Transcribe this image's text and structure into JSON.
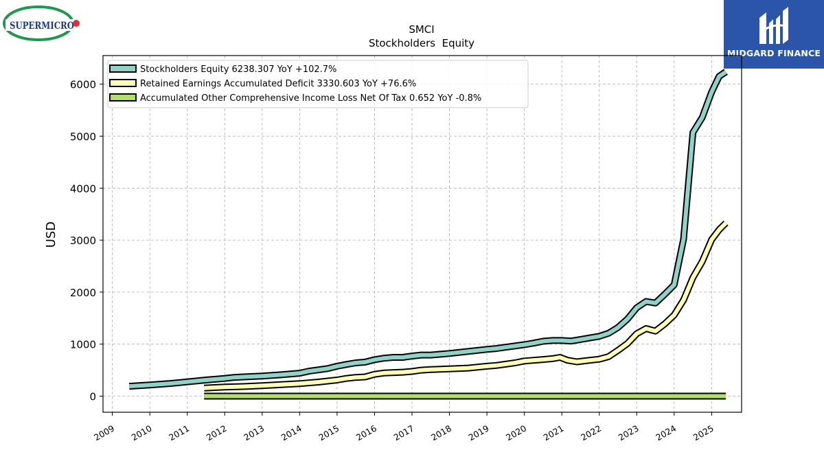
{
  "brand_left": {
    "name": "SUPERMICRO"
  },
  "brand_right": {
    "name": "MIDGARD FINANCE"
  },
  "chart_data": {
    "type": "line",
    "title": "SMCI",
    "subtitle": "Stockholders  Equity",
    "xlabel": "",
    "ylabel": "USD",
    "ylim": [
      -310,
      6550
    ],
    "xlim": [
      2008.75,
      2025.8
    ],
    "yticks": [
      0,
      1000,
      2000,
      3000,
      4000,
      5000,
      6000
    ],
    "xticks": [
      2009,
      2010,
      2011,
      2012,
      2013,
      2014,
      2015,
      2016,
      2017,
      2018,
      2019,
      2020,
      2021,
      2022,
      2023,
      2024,
      2025
    ],
    "grid": true,
    "legend_position": "top-left",
    "series": [
      {
        "name": "Stockholders Equity  6238.307 YoY +102.7%",
        "color": "#8dd3c7",
        "points": [
          [
            2009.45,
            190
          ],
          [
            2010.0,
            215
          ],
          [
            2010.5,
            240
          ],
          [
            2011.0,
            275
          ],
          [
            2011.5,
            310
          ],
          [
            2012.0,
            340
          ],
          [
            2012.25,
            360
          ],
          [
            2012.5,
            370
          ],
          [
            2013.0,
            385
          ],
          [
            2013.5,
            410
          ],
          [
            2014.0,
            440
          ],
          [
            2014.25,
            480
          ],
          [
            2014.75,
            530
          ],
          [
            2015.0,
            575
          ],
          [
            2015.25,
            610
          ],
          [
            2015.5,
            640
          ],
          [
            2015.75,
            655
          ],
          [
            2016.0,
            700
          ],
          [
            2016.25,
            730
          ],
          [
            2016.5,
            745
          ],
          [
            2016.75,
            745
          ],
          [
            2017.0,
            770
          ],
          [
            2017.25,
            790
          ],
          [
            2017.5,
            790
          ],
          [
            2018.0,
            820
          ],
          [
            2018.5,
            860
          ],
          [
            2018.75,
            880
          ],
          [
            2019.0,
            900
          ],
          [
            2019.25,
            915
          ],
          [
            2019.5,
            940
          ],
          [
            2020.0,
            990
          ],
          [
            2020.25,
            1020
          ],
          [
            2020.5,
            1055
          ],
          [
            2020.75,
            1070
          ],
          [
            2021.0,
            1070
          ],
          [
            2021.25,
            1060
          ],
          [
            2021.5,
            1090
          ],
          [
            2021.75,
            1120
          ],
          [
            2022.0,
            1150
          ],
          [
            2022.25,
            1210
          ],
          [
            2022.5,
            1320
          ],
          [
            2022.75,
            1480
          ],
          [
            2023.0,
            1700
          ],
          [
            2023.25,
            1820
          ],
          [
            2023.5,
            1790
          ],
          [
            2023.75,
            1960
          ],
          [
            2024.0,
            2140
          ],
          [
            2024.25,
            3020
          ],
          [
            2024.5,
            5070
          ],
          [
            2024.75,
            5360
          ],
          [
            2025.0,
            5850
          ],
          [
            2025.2,
            6150
          ],
          [
            2025.38,
            6238
          ]
        ]
      },
      {
        "name": "Retained Earnings Accumulated Deficit  3330.603 YoY +76.6%",
        "color": "#ffffb3",
        "points": [
          [
            2011.45,
            155
          ],
          [
            2012.0,
            175
          ],
          [
            2012.5,
            185
          ],
          [
            2013.0,
            200
          ],
          [
            2013.5,
            220
          ],
          [
            2014.0,
            240
          ],
          [
            2014.5,
            270
          ],
          [
            2015.0,
            310
          ],
          [
            2015.25,
            340
          ],
          [
            2015.5,
            360
          ],
          [
            2015.75,
            370
          ],
          [
            2016.0,
            420
          ],
          [
            2016.25,
            445
          ],
          [
            2016.75,
            460
          ],
          [
            2017.0,
            475
          ],
          [
            2017.25,
            500
          ],
          [
            2017.5,
            510
          ],
          [
            2018.0,
            525
          ],
          [
            2018.5,
            540
          ],
          [
            2019.0,
            575
          ],
          [
            2019.25,
            590
          ],
          [
            2019.75,
            640
          ],
          [
            2020.0,
            675
          ],
          [
            2020.5,
            705
          ],
          [
            2020.75,
            720
          ],
          [
            2020.95,
            745
          ],
          [
            2021.15,
            690
          ],
          [
            2021.4,
            660
          ],
          [
            2021.75,
            690
          ],
          [
            2022.0,
            710
          ],
          [
            2022.25,
            760
          ],
          [
            2022.5,
            880
          ],
          [
            2022.75,
            1010
          ],
          [
            2023.0,
            1200
          ],
          [
            2023.25,
            1300
          ],
          [
            2023.5,
            1250
          ],
          [
            2023.75,
            1390
          ],
          [
            2024.0,
            1560
          ],
          [
            2024.25,
            1850
          ],
          [
            2024.5,
            2280
          ],
          [
            2024.75,
            2590
          ],
          [
            2025.0,
            3010
          ],
          [
            2025.2,
            3200
          ],
          [
            2025.38,
            3330
          ]
        ]
      },
      {
        "name": "Accumulated Other Comprehensive Income Loss Net Of Tax  0.652 YoY -0.8%",
        "color": "#b3de69",
        "points": [
          [
            2011.45,
            0
          ],
          [
            2025.38,
            0
          ]
        ]
      }
    ]
  }
}
